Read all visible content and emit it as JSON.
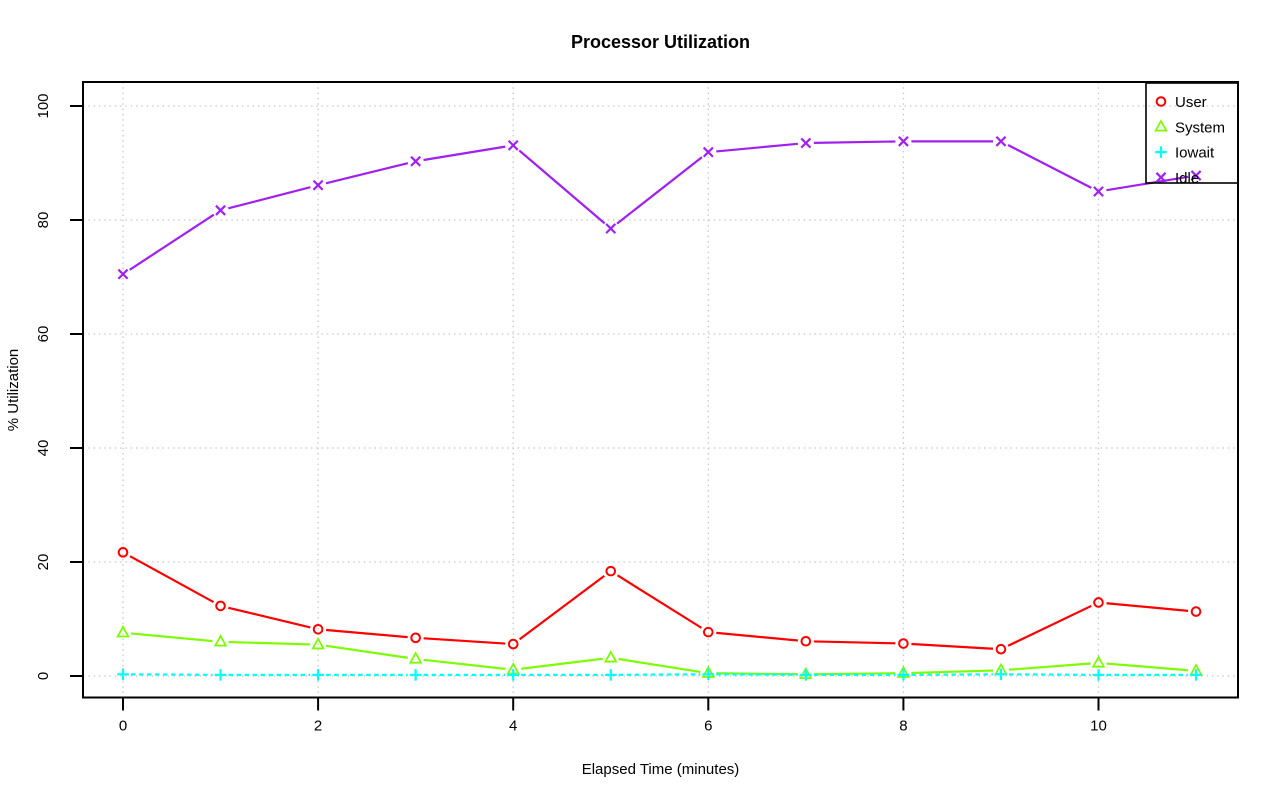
{
  "title": "Processor Utilization",
  "chart_data": {
    "type": "line",
    "title": "Processor Utilization",
    "xlabel": "Elapsed Time (minutes)",
    "ylabel": "% Utilization",
    "x": [
      0,
      1,
      2,
      3,
      4,
      5,
      6,
      7,
      8,
      9,
      10,
      11
    ],
    "xticks": [
      0,
      2,
      4,
      6,
      8,
      10
    ],
    "yticks": [
      0,
      20,
      40,
      60,
      80,
      100
    ],
    "xlim": [
      -0.41,
      11.43
    ],
    "ylim": [
      -3.77,
      104.21
    ],
    "grid": true,
    "grid_style": "dotted",
    "grid_color": "#c8c8c8",
    "legend_position": "top-right",
    "series": [
      {
        "name": "User",
        "color": "#FF0000",
        "marker": "circle",
        "line": "solid",
        "values": [
          21.7,
          12.3,
          8.2,
          6.7,
          5.6,
          18.4,
          7.7,
          6.1,
          5.7,
          4.7,
          12.9,
          11.3
        ]
      },
      {
        "name": "System",
        "color": "#7CFC00",
        "marker": "triangle",
        "line": "solid",
        "values": [
          7.6,
          6.0,
          5.5,
          3.0,
          1.1,
          3.2,
          0.5,
          0.3,
          0.5,
          1.0,
          2.3,
          0.9
        ]
      },
      {
        "name": "Iowait",
        "color": "#00FFFF",
        "marker": "plus",
        "line": "dashed",
        "values": [
          0.3,
          0.2,
          0.2,
          0.2,
          0.2,
          0.2,
          0.3,
          0.2,
          0.2,
          0.3,
          0.2,
          0.2
        ]
      },
      {
        "name": "Idle",
        "color": "#A020F0",
        "marker": "x",
        "line": "solid",
        "values": [
          70.5,
          81.7,
          86.1,
          90.3,
          93.1,
          78.5,
          91.9,
          93.5,
          93.8,
          93.8,
          85.0,
          87.8
        ]
      }
    ]
  },
  "colors": {
    "axis": "#000000",
    "grid": "#c8c8c8",
    "background": "#ffffff"
  }
}
